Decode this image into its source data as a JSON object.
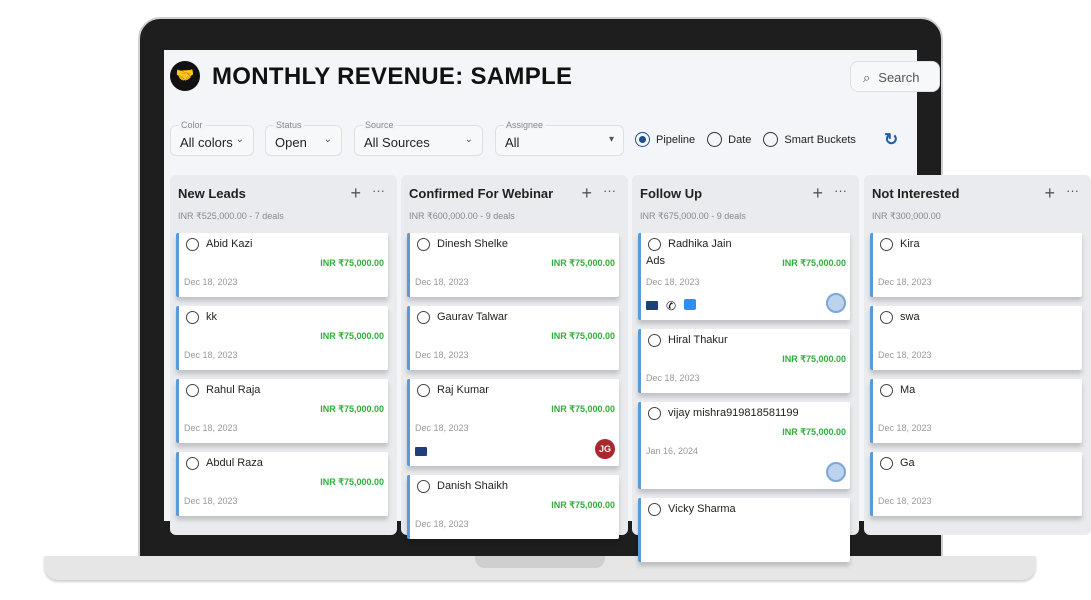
{
  "header": {
    "title": "MONTHLY REVENUE: SAMPLE",
    "search_placeholder": "Search"
  },
  "filters": [
    {
      "label": "Color",
      "value": "All colors"
    },
    {
      "label": "Status",
      "value": "Open"
    },
    {
      "label": "Source",
      "value": "All Sources"
    },
    {
      "label": "Assignee",
      "value": "All"
    }
  ],
  "view_modes": [
    {
      "label": "Pipeline",
      "selected": true
    },
    {
      "label": "Date",
      "selected": false
    },
    {
      "label": "Smart Buckets",
      "selected": false
    }
  ],
  "colors": {
    "amount": "#2fae3a",
    "accent": "#1f4e8c",
    "card_border": "#5b9bd5"
  },
  "columns": [
    {
      "title": "New Leads",
      "summary": "INR ₹525,000.00 - 7 deals",
      "cards": [
        {
          "name": "Abid Kazi",
          "amount": "INR ₹75,000.00",
          "date": "Dec 18, 2023"
        },
        {
          "name": "kk",
          "amount": "INR ₹75,000.00",
          "date": "Dec 18, 2023"
        },
        {
          "name": "Rahul Raja",
          "amount": "INR ₹75,000.00",
          "date": "Dec 18, 2023"
        },
        {
          "name": "Abdul Raza",
          "amount": "INR ₹75,000.00",
          "date": "Dec 18, 2023"
        }
      ]
    },
    {
      "title": "Confirmed For Webinar",
      "summary": "INR ₹600,000.00 - 9 deals",
      "cards": [
        {
          "name": "Dinesh Shelke",
          "amount": "INR ₹75,000.00",
          "date": "Dec 18, 2023"
        },
        {
          "name": "Gaurav Talwar",
          "amount": "INR ₹75,000.00",
          "date": "Dec 18, 2023"
        },
        {
          "name": "Raj Kumar",
          "amount": "INR ₹75,000.00",
          "date": "Dec 18, 2023",
          "icons": [
            "mail"
          ],
          "avatar": "JG"
        },
        {
          "name": "Danish Shaikh",
          "amount": "INR ₹75,000.00",
          "date": "Dec 18, 2023"
        }
      ]
    },
    {
      "title": "Follow Up",
      "summary": "INR ₹675,000.00 - 9 deals",
      "cards": [
        {
          "name": "Radhika Jain",
          "source": "Ads",
          "amount": "INR ₹75,000.00",
          "date": "Dec 18, 2023",
          "icons": [
            "mail",
            "phone",
            "chat"
          ],
          "avatar": "logo"
        },
        {
          "name": "Hiral Thakur",
          "amount": "INR ₹75,000.00",
          "date": "Dec 18, 2023"
        },
        {
          "name": "vijay mishra919818581199",
          "amount": "INR ₹75,000.00",
          "date": "Jan 16, 2024",
          "avatar": "logo"
        },
        {
          "name": "Vicky Sharma",
          "amount": "",
          "date": ""
        }
      ]
    },
    {
      "title": "Not Interested",
      "summary": "INR ₹300,000.00",
      "cards": [
        {
          "name": "Kira",
          "amount": "",
          "date": "Dec 18, 2023"
        },
        {
          "name": "swa",
          "amount": "",
          "date": "Dec 18, 2023"
        },
        {
          "name": "Ma",
          "amount": "",
          "date": "Dec 18, 2023"
        },
        {
          "name": "Ga",
          "amount": "",
          "date": "Dec 18, 2023"
        }
      ]
    }
  ]
}
